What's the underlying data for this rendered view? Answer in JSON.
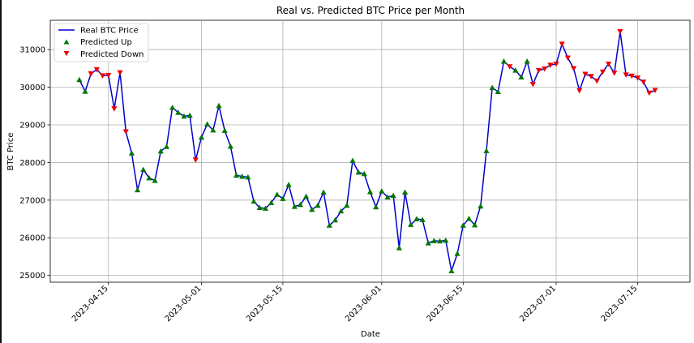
{
  "chart_data": {
    "type": "line",
    "title": "Real vs. Predicted BTC Price per Month",
    "xlabel": "Date",
    "ylabel": "BTC Price",
    "x_start": "2023-04-10",
    "x_end": "2023-07-19",
    "xlim": [
      "2023-04-05",
      "2023-07-24"
    ],
    "ylim": [
      24820,
      31780
    ],
    "xticks": [
      "2023-04-15",
      "2023-05-01",
      "2023-05-15",
      "2023-06-01",
      "2023-06-15",
      "2023-07-01",
      "2023-07-15"
    ],
    "yticks": [
      25000,
      26000,
      27000,
      28000,
      29000,
      30000,
      31000
    ],
    "grid": true,
    "legend_position": "top-left",
    "colors": {
      "line": "#0000cc",
      "up": "#007700",
      "down": "#ee0000"
    },
    "series": [
      {
        "name": "Real BTC Price",
        "values": [
          30200,
          29890,
          30360,
          30470,
          30310,
          30320,
          29430,
          30390,
          28820,
          28250,
          27270,
          27810,
          27590,
          27520,
          28300,
          28420,
          29460,
          29330,
          29230,
          29250,
          28070,
          28670,
          29020,
          28860,
          29510,
          28850,
          28430,
          27660,
          27630,
          27610,
          26970,
          26800,
          26780,
          26930,
          27150,
          27040,
          27410,
          26830,
          26880,
          27100,
          26750,
          26860,
          27210,
          26330,
          26470,
          26710,
          26860,
          28050,
          27740,
          27700,
          27220,
          26820,
          27240,
          27080,
          27120,
          25730,
          27210,
          26350,
          26500,
          26480,
          25860,
          25920,
          25910,
          25930,
          25120,
          25580,
          26330,
          26510,
          26340,
          26840,
          28310,
          29990,
          29880,
          30690,
          30550,
          30450,
          30270,
          30690,
          30080,
          30450,
          30490,
          30590,
          30620,
          31150,
          30780,
          30500,
          29910,
          30350,
          30290,
          30170,
          30410,
          30620,
          30380,
          31480,
          30330,
          30300,
          30250,
          30140,
          29850,
          29920
        ]
      },
      {
        "name": "Predicted Up",
        "marker": "triangle-up",
        "indices": [
          0,
          1,
          9,
          10,
          11,
          12,
          13,
          14,
          15,
          16,
          17,
          18,
          19,
          21,
          22,
          23,
          24,
          25,
          26,
          27,
          28,
          29,
          30,
          31,
          32,
          33,
          34,
          35,
          36,
          37,
          38,
          39,
          40,
          41,
          42,
          43,
          44,
          45,
          46,
          47,
          48,
          49,
          50,
          51,
          52,
          53,
          54,
          55,
          56,
          57,
          58,
          59,
          60,
          61,
          62,
          63,
          64,
          65,
          66,
          67,
          68,
          69,
          70,
          71,
          72,
          73,
          75,
          76,
          77
        ]
      },
      {
        "name": "Predicted Down",
        "marker": "triangle-down",
        "indices": [
          2,
          3,
          4,
          5,
          6,
          7,
          8,
          20,
          74,
          78,
          79,
          80,
          81,
          82,
          83,
          84,
          85,
          86,
          87,
          88,
          89,
          90,
          91,
          92,
          93,
          94,
          95,
          96,
          97,
          98,
          99
        ]
      }
    ]
  }
}
